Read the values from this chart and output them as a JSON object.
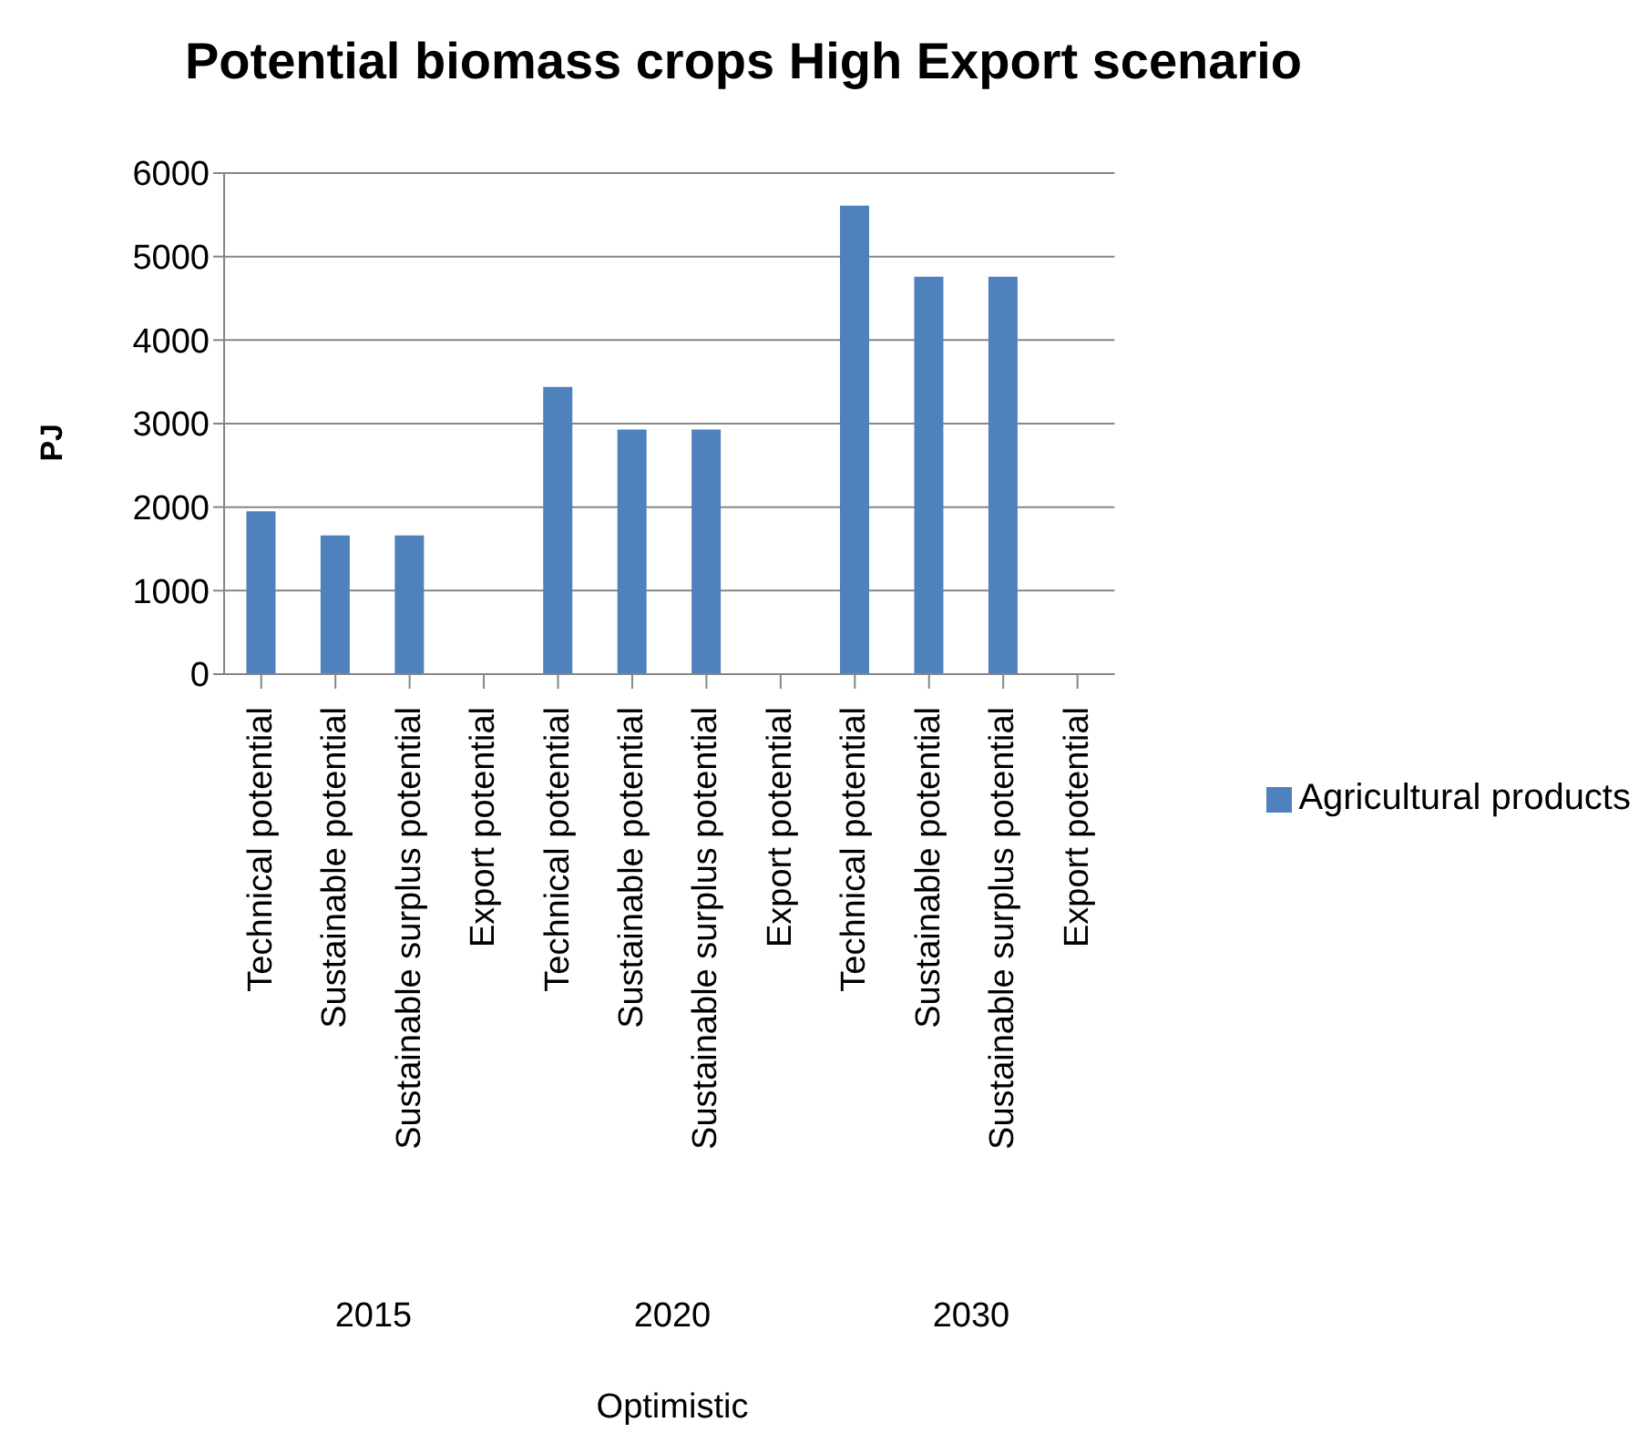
{
  "chart_data": {
    "type": "bar",
    "title": "Potential biomass crops High Export scenario",
    "ylabel": "PJ",
    "categories": [
      "Technical potential",
      "Sustainable potential",
      "Sustainable surplus potential",
      "Export potential",
      "Technical potential",
      "Sustainable potential",
      "Sustainable surplus potential",
      "Export potential",
      "Technical potential",
      "Sustainable potential",
      "Sustainable surplus potential",
      "Export potential"
    ],
    "series": [
      {
        "name": "Agricultural products",
        "color": "#4f81bd",
        "values": [
          1950,
          1660,
          1660,
          null,
          3440,
          2930,
          2930,
          null,
          5610,
          4760,
          4760,
          null
        ]
      }
    ],
    "annotations": [
      "2015",
      "2020",
      "2030",
      "Optimistic"
    ],
    "ylim": [
      0,
      6000
    ],
    "yticks": [
      0,
      1000,
      2000,
      3000,
      4000,
      5000,
      6000
    ],
    "grid": "y",
    "legend": "right"
  }
}
